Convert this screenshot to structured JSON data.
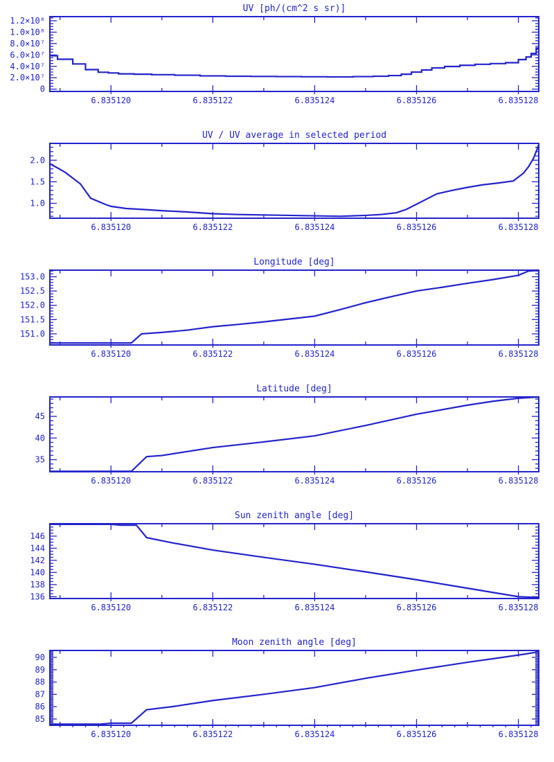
{
  "figure": {
    "background": "#ffffff",
    "accent": "#2222cc"
  },
  "chart_data": [
    {
      "type": "line",
      "title": "UV [ph/(cm^2 s sr)]",
      "xlabel": "",
      "ylabel": "",
      "interp": "step",
      "xlim": [
        6.8351188,
        6.8351284
      ],
      "ylim": [
        -4100000,
        127300000
      ],
      "xticks": {
        "values": [
          6.83512,
          6.835122,
          6.835124,
          6.835126,
          6.835128
        ],
        "labels": [
          "6.835120",
          "6.835122",
          "6.835124",
          "6.835126",
          "6.835128"
        ],
        "minor_divisions": 2
      },
      "yticks": {
        "values": [
          0,
          20000000,
          40000000,
          60000000,
          80000000,
          100000000,
          120000000
        ],
        "labels": [
          "0",
          "2.0×10⁷",
          "4.0×10⁷",
          "6.0×10⁷",
          "8.0×10⁷",
          "1.0×10⁸",
          "1.2×10⁸"
        ],
        "minor_divisions": 4
      },
      "x": [
        6.8351188,
        6.8351191,
        6.8351194,
        6.8351196,
        6.8351199,
        6.83512,
        6.8351203,
        6.8351206,
        6.835121,
        6.8351215,
        6.835122,
        6.8351225,
        6.835123,
        6.8351235,
        6.835124,
        6.8351245,
        6.835125,
        6.8351253,
        6.8351256,
        6.8351258,
        6.835126,
        6.8351262,
        6.8351264,
        6.8351267,
        6.835127,
        6.8351273,
        6.8351276,
        6.8351279,
        6.8351281,
        6.8351282,
        6.8351283,
        6.8351284
      ],
      "y": [
        58600000,
        52500000,
        44200000,
        34200000,
        29600000,
        28400000,
        26800000,
        26200000,
        25300000,
        24400000,
        23200000,
        22600000,
        22300000,
        22000000,
        21700000,
        21400000,
        22000000,
        22600000,
        23800000,
        26200000,
        29900000,
        33600000,
        37200000,
        39700000,
        41800000,
        43600000,
        44800000,
        46400000,
        51900000,
        56400000,
        62500000,
        72000000
      ]
    },
    {
      "type": "line",
      "title": "UV / UV average in selected period",
      "xlabel": "",
      "ylabel": "",
      "interp": "linear",
      "xlim": [
        6.8351188,
        6.8351284
      ],
      "ylim": [
        0.655,
        2.39
      ],
      "xticks": {
        "values": [
          6.83512,
          6.835122,
          6.835124,
          6.835126,
          6.835128
        ],
        "labels": [
          "6.835120",
          "6.835122",
          "6.835124",
          "6.835126",
          "6.835128"
        ],
        "minor_divisions": 2
      },
      "yticks": {
        "values": [
          1.0,
          1.5,
          2.0
        ],
        "labels": [
          "1.0",
          "1.5",
          "2.0"
        ],
        "minor_divisions": 5
      },
      "x": [
        6.8351188,
        6.8351191,
        6.8351194,
        6.8351196,
        6.8351199,
        6.83512,
        6.8351203,
        6.8351206,
        6.835121,
        6.8351215,
        6.835122,
        6.8351225,
        6.835123,
        6.8351235,
        6.835124,
        6.8351245,
        6.835125,
        6.8351253,
        6.8351256,
        6.8351258,
        6.835126,
        6.8351262,
        6.8351264,
        6.8351267,
        6.835127,
        6.8351273,
        6.8351276,
        6.8351279,
        6.8351281,
        6.8351282,
        6.8351283,
        6.8351284
      ],
      "y": [
        1.92,
        1.72,
        1.45,
        1.12,
        0.97,
        0.93,
        0.88,
        0.86,
        0.83,
        0.8,
        0.76,
        0.74,
        0.73,
        0.72,
        0.71,
        0.7,
        0.72,
        0.74,
        0.78,
        0.86,
        0.98,
        1.1,
        1.22,
        1.3,
        1.37,
        1.43,
        1.47,
        1.52,
        1.7,
        1.85,
        2.05,
        2.36
      ]
    },
    {
      "type": "line",
      "title": "Longitude [deg]",
      "xlabel": "",
      "ylabel": "",
      "interp": "linear",
      "xlim": [
        6.8351188,
        6.8351284
      ],
      "ylim": [
        150.61,
        153.23
      ],
      "xticks": {
        "values": [
          6.83512,
          6.835122,
          6.835124,
          6.835126,
          6.835128
        ],
        "labels": [
          "6.835120",
          "6.835122",
          "6.835124",
          "6.835126",
          "6.835128"
        ],
        "minor_divisions": 2
      },
      "yticks": {
        "values": [
          151.0,
          151.5,
          152.0,
          152.5,
          153.0
        ],
        "labels": [
          "151.0",
          "151.5",
          "152.0",
          "152.5",
          "153.0"
        ],
        "minor_divisions": 5
      },
      "x": [
        6.8351188,
        6.8351204,
        6.8351206,
        6.835121,
        6.8351215,
        6.835122,
        6.8351225,
        6.835123,
        6.8351235,
        6.835124,
        6.8351245,
        6.835125,
        6.8351255,
        6.835126,
        6.8351265,
        6.835127,
        6.8351275,
        6.835128,
        6.8351282,
        6.8351284
      ],
      "y": [
        150.68,
        150.68,
        151.0,
        151.05,
        151.13,
        151.25,
        151.33,
        151.42,
        151.52,
        151.62,
        151.85,
        152.09,
        152.3,
        152.5,
        152.63,
        152.77,
        152.9,
        153.05,
        153.2,
        153.22
      ]
    },
    {
      "type": "line",
      "title": "Latitude [deg]",
      "xlabel": "",
      "ylabel": "",
      "interp": "linear",
      "xlim": [
        6.8351188,
        6.8351284
      ],
      "ylim": [
        32.2,
        49.5
      ],
      "xticks": {
        "values": [
          6.83512,
          6.835122,
          6.835124,
          6.835126,
          6.835128
        ],
        "labels": [
          "6.835120",
          "6.835122",
          "6.835124",
          "6.835126",
          "6.835128"
        ],
        "minor_divisions": 2
      },
      "yticks": {
        "values": [
          35,
          40,
          45
        ],
        "labels": [
          "35",
          "40",
          "45"
        ],
        "minor_divisions": 5
      },
      "x": [
        6.8351188,
        6.8351204,
        6.8351207,
        6.835121,
        6.835122,
        6.835123,
        6.835124,
        6.835125,
        6.835126,
        6.835127,
        6.8351275,
        6.835128,
        6.8351283,
        6.8351284
      ],
      "y": [
        32.3,
        32.3,
        35.7,
        35.95,
        37.8,
        39.1,
        40.5,
        42.9,
        45.5,
        47.6,
        48.5,
        49.2,
        49.42,
        49.45
      ]
    },
    {
      "type": "line",
      "title": "Sun zenith angle [deg]",
      "xlabel": "",
      "ylabel": "",
      "interp": "linear",
      "xlim": [
        6.8351188,
        6.8351284
      ],
      "ylim": [
        135.7,
        148.05
      ],
      "xticks": {
        "values": [
          6.83512,
          6.835122,
          6.835124,
          6.835126,
          6.835128
        ],
        "labels": [
          "6.835120",
          "6.835122",
          "6.835124",
          "6.835126",
          "6.835128"
        ],
        "minor_divisions": 2
      },
      "yticks": {
        "values": [
          136,
          138,
          140,
          142,
          144,
          146
        ],
        "labels": [
          "136",
          "138",
          "140",
          "142",
          "144",
          "146"
        ],
        "minor_divisions": 4
      },
      "x": [
        6.8351188,
        6.83512,
        6.8351202,
        6.8351205,
        6.8351207,
        6.8351212,
        6.835122,
        6.835123,
        6.835124,
        6.835125,
        6.835126,
        6.835127,
        6.835128,
        6.8351283,
        6.8351284
      ],
      "y": [
        147.95,
        147.95,
        147.8,
        147.8,
        145.75,
        144.9,
        143.7,
        142.5,
        141.35,
        140.1,
        138.8,
        137.4,
        136.0,
        135.9,
        135.9
      ]
    },
    {
      "type": "line",
      "title": "Moon zenith angle [deg]",
      "xlabel": "",
      "ylabel": "",
      "interp": "linear",
      "xlim": [
        6.8351188,
        6.8351284
      ],
      "ylim": [
        84.49,
        90.56
      ],
      "xticks": {
        "values": [
          6.83512,
          6.835122,
          6.835124,
          6.835126,
          6.835128
        ],
        "labels": [
          "6.835120",
          "6.835122",
          "6.835124",
          "6.835126",
          "6.835128"
        ],
        "minor_divisions": 2,
        "outward_minor_divisions": 8
      },
      "yticks": {
        "values": [
          85,
          86,
          87,
          88,
          89,
          90
        ],
        "labels": [
          "85",
          "86",
          "87",
          "88",
          "89",
          "90"
        ],
        "minor_divisions": 10
      },
      "x": [
        6.8351188,
        6.8351198,
        6.83512,
        6.8351204,
        6.8351207,
        6.8351212,
        6.835122,
        6.835123,
        6.835124,
        6.835125,
        6.835126,
        6.835127,
        6.8351276,
        6.8351281,
        6.8351284
      ],
      "y": [
        84.58,
        84.58,
        84.66,
        84.66,
        85.75,
        86.0,
        86.5,
        87.0,
        87.55,
        88.3,
        88.97,
        89.6,
        89.95,
        90.25,
        90.45
      ]
    }
  ]
}
